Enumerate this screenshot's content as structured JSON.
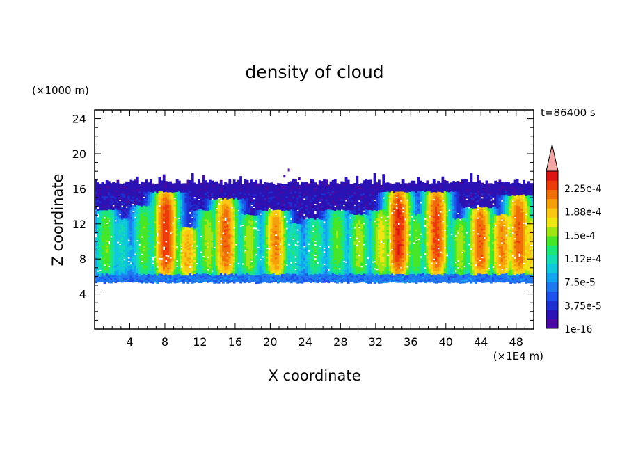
{
  "chart_data": {
    "type": "heatmap",
    "title": "density of cloud",
    "xlabel": "X coordinate",
    "ylabel": "Z coordinate",
    "x_unit": "(×1E4 m)",
    "y_unit": "(×1000 m)",
    "time_label": "t=86400 s",
    "xlim": [
      0,
      50
    ],
    "ylim": [
      0,
      25
    ],
    "x_ticks": [
      "4",
      "8",
      "12",
      "16",
      "20",
      "24",
      "28",
      "32",
      "36",
      "40",
      "44",
      "48"
    ],
    "y_ticks": [
      "4",
      "8",
      "12",
      "16",
      "20",
      "24"
    ],
    "colorbar": {
      "labels": [
        "2.25e-4",
        "1.88e-4",
        "1.5e-4",
        "1.12e-4",
        "7.5e-5",
        "3.75e-5",
        "1e-16"
      ],
      "colors": [
        "#4b0aa0",
        "#2a12b4",
        "#1f2fd2",
        "#1f52ec",
        "#1e78f0",
        "#12a4f0",
        "#10c8dc",
        "#14dcb4",
        "#1ee678",
        "#46e628",
        "#a0e614",
        "#f0e614",
        "#fac814",
        "#f5a00a",
        "#f06e0a",
        "#eb3c0a",
        "#dc1414"
      ],
      "overflow_color": "#f4a6a6",
      "min": 1e-16,
      "max": 0.00024
    },
    "cloud_layer": {
      "base": 5.2,
      "top": 17.0,
      "cores": [
        {
          "x": 1.2,
          "top": 13.5,
          "peak": 0.55
        },
        {
          "x": 3.0,
          "top": 12.5,
          "peak": 0.4
        },
        {
          "x": 5.5,
          "top": 14.0,
          "peak": 0.55
        },
        {
          "x": 8.0,
          "top": 15.6,
          "peak": 0.9
        },
        {
          "x": 10.5,
          "top": 11.5,
          "peak": 0.75
        },
        {
          "x": 12.8,
          "top": 13.5,
          "peak": 0.6
        },
        {
          "x": 14.8,
          "top": 14.8,
          "peak": 0.85
        },
        {
          "x": 17.5,
          "top": 13.0,
          "peak": 0.6
        },
        {
          "x": 20.5,
          "top": 13.5,
          "peak": 0.8
        },
        {
          "x": 22.5,
          "top": 12.0,
          "peak": 0.45
        },
        {
          "x": 25.0,
          "top": 12.5,
          "peak": 0.5
        },
        {
          "x": 27.5,
          "top": 13.5,
          "peak": 0.55
        },
        {
          "x": 30.0,
          "top": 13.0,
          "peak": 0.6
        },
        {
          "x": 32.5,
          "top": 13.5,
          "peak": 0.65
        },
        {
          "x": 34.5,
          "top": 15.8,
          "peak": 0.92
        },
        {
          "x": 36.5,
          "top": 13.0,
          "peak": 0.55
        },
        {
          "x": 38.8,
          "top": 16.0,
          "peak": 0.88
        },
        {
          "x": 41.5,
          "top": 12.5,
          "peak": 0.6
        },
        {
          "x": 43.8,
          "top": 13.8,
          "peak": 0.85
        },
        {
          "x": 46.3,
          "top": 13.0,
          "peak": 0.8
        },
        {
          "x": 48.2,
          "top": 15.2,
          "peak": 0.85
        },
        {
          "x": 49.5,
          "top": 12.5,
          "peak": 0.7
        }
      ]
    }
  }
}
